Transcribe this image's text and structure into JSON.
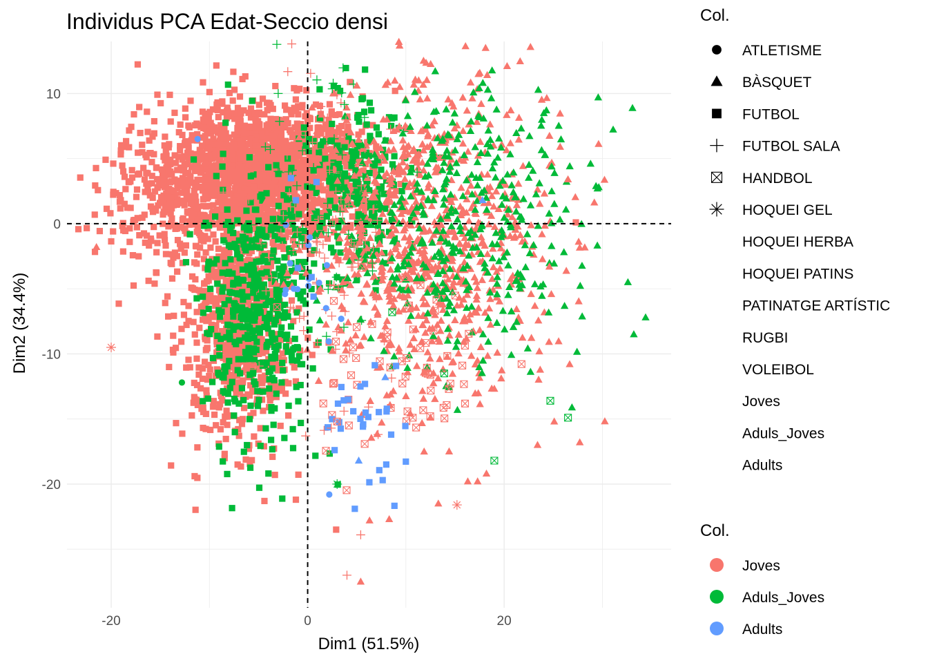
{
  "chart_data": {
    "type": "scatter",
    "title": "Individus PCA Edat-Seccio densi",
    "xlabel": "Dim1 (51.5%)",
    "ylabel": "Dim2 (34.4%)",
    "xlim": [
      -24.5,
      37
    ],
    "ylim": [
      -29.5,
      14
    ],
    "x_ticks": [
      -20,
      0,
      20
    ],
    "y_ticks": [
      10,
      0,
      -10,
      -20
    ],
    "x_tick_labels": [
      "-20",
      "0",
      "20"
    ],
    "y_tick_labels": [
      "10",
      "0",
      "-10",
      "-20"
    ],
    "reference_lines": {
      "x": 0,
      "y": 0,
      "style": "dashed"
    },
    "legend_shape": {
      "title": "Col.",
      "entries": [
        {
          "label": "ATLETISME",
          "shape": "circle"
        },
        {
          "label": "BÀSQUET",
          "shape": "triangle"
        },
        {
          "label": "FUTBOL",
          "shape": "square"
        },
        {
          "label": "FUTBOL SALA",
          "shape": "plus"
        },
        {
          "label": "HANDBOL",
          "shape": "boxed-x"
        },
        {
          "label": "HOQUEI GEL",
          "shape": "asterisk"
        },
        {
          "label": "HOQUEI HERBA",
          "shape": "none"
        },
        {
          "label": "HOQUEI PATINS",
          "shape": "none"
        },
        {
          "label": "PATINATGE ARTÍSTIC",
          "shape": "none"
        },
        {
          "label": "RUGBI",
          "shape": "none"
        },
        {
          "label": "VOLEIBOL",
          "shape": "none"
        },
        {
          "label": "Joves",
          "shape": "none"
        },
        {
          "label": "Aduls_Joves",
          "shape": "none"
        },
        {
          "label": "Adults",
          "shape": "none"
        }
      ]
    },
    "legend_color": {
      "title": "Col.",
      "entries": [
        {
          "label": "Joves",
          "color": "#F8766D"
        },
        {
          "label": "Aduls_Joves",
          "color": "#00BA38"
        },
        {
          "label": "Adults",
          "color": "#619CFF"
        }
      ]
    },
    "clusters": [
      {
        "group": "Joves",
        "shape": "square",
        "count": 1800,
        "cx": -4,
        "cy": 4,
        "sx": 4.5,
        "sy": 2.6
      },
      {
        "group": "Joves",
        "shape": "square",
        "count": 700,
        "cx": -7,
        "cy": -8,
        "sx": 2.8,
        "sy": 4.5
      },
      {
        "group": "Joves",
        "shape": "square",
        "count": 300,
        "cx": -14,
        "cy": 2,
        "sx": 4,
        "sy": 3
      },
      {
        "group": "Aduls_Joves",
        "shape": "square",
        "count": 450,
        "cx": -5,
        "cy": -6,
        "sx": 3,
        "sy": 5
      },
      {
        "group": "Aduls_Joves",
        "shape": "square",
        "count": 220,
        "cx": 5,
        "cy": 3,
        "sx": 3,
        "sy": 3.5
      },
      {
        "group": "Joves",
        "shape": "triangle",
        "count": 800,
        "cx": 12,
        "cy": -1,
        "sx": 6,
        "sy": 6
      },
      {
        "group": "Aduls_Joves",
        "shape": "triangle",
        "count": 380,
        "cx": 16,
        "cy": 0,
        "sx": 6,
        "sy": 5.5
      },
      {
        "group": "Joves",
        "shape": "plus",
        "count": 120,
        "cx": 1,
        "cy": 0,
        "sx": 4,
        "sy": 6
      },
      {
        "group": "Aduls_Joves",
        "shape": "plus",
        "count": 50,
        "cx": 2,
        "cy": 2,
        "sx": 4,
        "sy": 6
      },
      {
        "group": "Joves",
        "shape": "boxed-x",
        "count": 60,
        "cx": 10,
        "cy": -10,
        "sx": 5,
        "sy": 4
      },
      {
        "group": "Adults",
        "shape": "square",
        "count": 28,
        "cx": 6,
        "cy": -15,
        "sx": 2.5,
        "sy": 3
      },
      {
        "group": "Adults",
        "shape": "circle",
        "count": 14,
        "cx": 0.8,
        "cy": -4,
        "sx": 1.5,
        "sy": 3
      }
    ],
    "points": [
      {
        "x": -20,
        "y": -9.5,
        "group": "Joves",
        "shape": "asterisk"
      },
      {
        "x": 15.2,
        "y": -21.6,
        "group": "Joves",
        "shape": "asterisk"
      },
      {
        "x": 3,
        "y": -20,
        "group": "Aduls_Joves",
        "shape": "asterisk"
      },
      {
        "x": -12.8,
        "y": -12.2,
        "group": "Aduls_Joves",
        "shape": "circle"
      },
      {
        "x": -11.2,
        "y": 6.5,
        "group": "Adults",
        "shape": "circle"
      },
      {
        "x": 20.3,
        "y": 12.1,
        "group": "Joves",
        "shape": "triangle"
      },
      {
        "x": -21.5,
        "y": -1.8,
        "group": "Joves",
        "shape": "triangle"
      },
      {
        "x": 5.4,
        "y": -27.5,
        "group": "Joves",
        "shape": "triangle"
      },
      {
        "x": 4,
        "y": -27,
        "group": "Joves",
        "shape": "plus"
      },
      {
        "x": 5.4,
        "y": -23.9,
        "group": "Joves",
        "shape": "plus"
      },
      {
        "x": 34.4,
        "y": -7.2,
        "group": "Aduls_Joves",
        "shape": "triangle"
      },
      {
        "x": 33.2,
        "y": -8.5,
        "group": "Aduls_Joves",
        "shape": "triangle"
      },
      {
        "x": 32.6,
        "y": -4.5,
        "group": "Aduls_Joves",
        "shape": "triangle"
      },
      {
        "x": 29.5,
        "y": 2.7,
        "group": "Aduls_Joves",
        "shape": "triangle"
      },
      {
        "x": 28.8,
        "y": 4.6,
        "group": "Aduls_Joves",
        "shape": "triangle"
      },
      {
        "x": 26.5,
        "y": -14.9,
        "group": "Aduls_Joves",
        "shape": "boxed-x"
      },
      {
        "x": 24.7,
        "y": -13.6,
        "group": "Aduls_Joves",
        "shape": "boxed-x"
      },
      {
        "x": 19,
        "y": -18.2,
        "group": "Aduls_Joves",
        "shape": "boxed-x"
      },
      {
        "x": 13.9,
        "y": -11.5,
        "group": "Aduls_Joves",
        "shape": "boxed-x"
      },
      {
        "x": 8.6,
        "y": -6.8,
        "group": "Aduls_Joves",
        "shape": "boxed-x"
      },
      {
        "x": 8.5,
        "y": -16.2,
        "group": "Adults",
        "shape": "square"
      },
      {
        "x": 8,
        "y": -18.5,
        "group": "Adults",
        "shape": "square"
      },
      {
        "x": 4.8,
        "y": -21.9,
        "group": "Adults",
        "shape": "square"
      },
      {
        "x": 2.2,
        "y": -20.8,
        "group": "Adults",
        "shape": "circle"
      },
      {
        "x": 5.2,
        "y": -18.2,
        "group": "Adults",
        "shape": "triangle"
      },
      {
        "x": 7.9,
        "y": -11.8,
        "group": "Adults",
        "shape": "triangle"
      },
      {
        "x": 17.8,
        "y": 1.8,
        "group": "Adults",
        "shape": "triangle"
      },
      {
        "x": -3,
        "y": 10,
        "group": "Aduls_Joves",
        "shape": "plus"
      },
      {
        "x": -4.3,
        "y": 5.9,
        "group": "Aduls_Joves",
        "shape": "plus"
      },
      {
        "x": -1.2,
        "y": 1.8,
        "group": "Adults",
        "shape": "square"
      },
      {
        "x": 0.9,
        "y": 3.2,
        "group": "Adults",
        "shape": "square"
      },
      {
        "x": -1,
        "y": -3.4,
        "group": "Adults",
        "shape": "square"
      },
      {
        "x": 0.6,
        "y": -5.6,
        "group": "Adults",
        "shape": "square"
      },
      {
        "x": 0.4,
        "y": -4.1,
        "group": "Adults",
        "shape": "square"
      },
      {
        "x": -1.7,
        "y": 3.5,
        "group": "Adults",
        "shape": "square"
      },
      {
        "x": -2.3,
        "y": -5.4,
        "group": "Adults",
        "shape": "circle"
      },
      {
        "x": 3.7,
        "y": -14.4,
        "group": "Joves",
        "shape": "plus"
      },
      {
        "x": 2.4,
        "y": -15.7,
        "group": "Joves",
        "shape": "plus"
      },
      {
        "x": -0.2,
        "y": -16.3,
        "group": "Joves",
        "shape": "plus"
      },
      {
        "x": -1.2,
        "y": -21.2,
        "group": "Joves",
        "shape": "square"
      },
      {
        "x": -4.4,
        "y": -21.3,
        "group": "Joves",
        "shape": "square"
      },
      {
        "x": 2.9,
        "y": -23.5,
        "group": "Joves",
        "shape": "square"
      },
      {
        "x": 6.3,
        "y": -22.8,
        "group": "Joves",
        "shape": "triangle"
      },
      {
        "x": 8.3,
        "y": -22.7,
        "group": "Joves",
        "shape": "triangle"
      },
      {
        "x": 13.3,
        "y": -21.5,
        "group": "Joves",
        "shape": "triangle"
      },
      {
        "x": 17.3,
        "y": -19.8,
        "group": "Joves",
        "shape": "triangle"
      },
      {
        "x": 16.3,
        "y": -19.8,
        "group": "Joves",
        "shape": "triangle"
      },
      {
        "x": 18.2,
        "y": -19.2,
        "group": "Joves",
        "shape": "triangle"
      },
      {
        "x": 14.4,
        "y": -17.5,
        "group": "Joves",
        "shape": "triangle"
      },
      {
        "x": 10.7,
        "y": -14.9,
        "group": "Joves",
        "shape": "boxed-x"
      },
      {
        "x": 12.5,
        "y": -14.9,
        "group": "Joves",
        "shape": "triangle"
      },
      {
        "x": 2.6,
        "y": -12.3,
        "group": "Joves",
        "shape": "boxed-x"
      },
      {
        "x": 4.2,
        "y": -15.5,
        "group": "Joves",
        "shape": "boxed-x"
      },
      {
        "x": 3,
        "y": -15.2,
        "group": "Joves",
        "shape": "boxed-x"
      },
      {
        "x": 23.4,
        "y": -17,
        "group": "Joves",
        "shape": "triangle"
      },
      {
        "x": 27.7,
        "y": -16.8,
        "group": "Joves",
        "shape": "triangle"
      },
      {
        "x": 25.1,
        "y": -15.2,
        "group": "Joves",
        "shape": "triangle"
      },
      {
        "x": 27.3,
        "y": 0.1,
        "group": "Joves",
        "shape": "square"
      },
      {
        "x": 25.7,
        "y": 5.9,
        "group": "Joves",
        "shape": "triangle"
      },
      {
        "x": 26.5,
        "y": 3.4,
        "group": "Joves",
        "shape": "triangle"
      },
      {
        "x": 24.6,
        "y": -3.3,
        "group": "Joves",
        "shape": "triangle"
      },
      {
        "x": 8.9,
        "y": 10.2,
        "group": "Joves",
        "shape": "square"
      },
      {
        "x": 11.3,
        "y": 11,
        "group": "Joves",
        "shape": "triangle"
      },
      {
        "x": 5,
        "y": 10.6,
        "group": "Joves",
        "shape": "triangle"
      }
    ]
  }
}
